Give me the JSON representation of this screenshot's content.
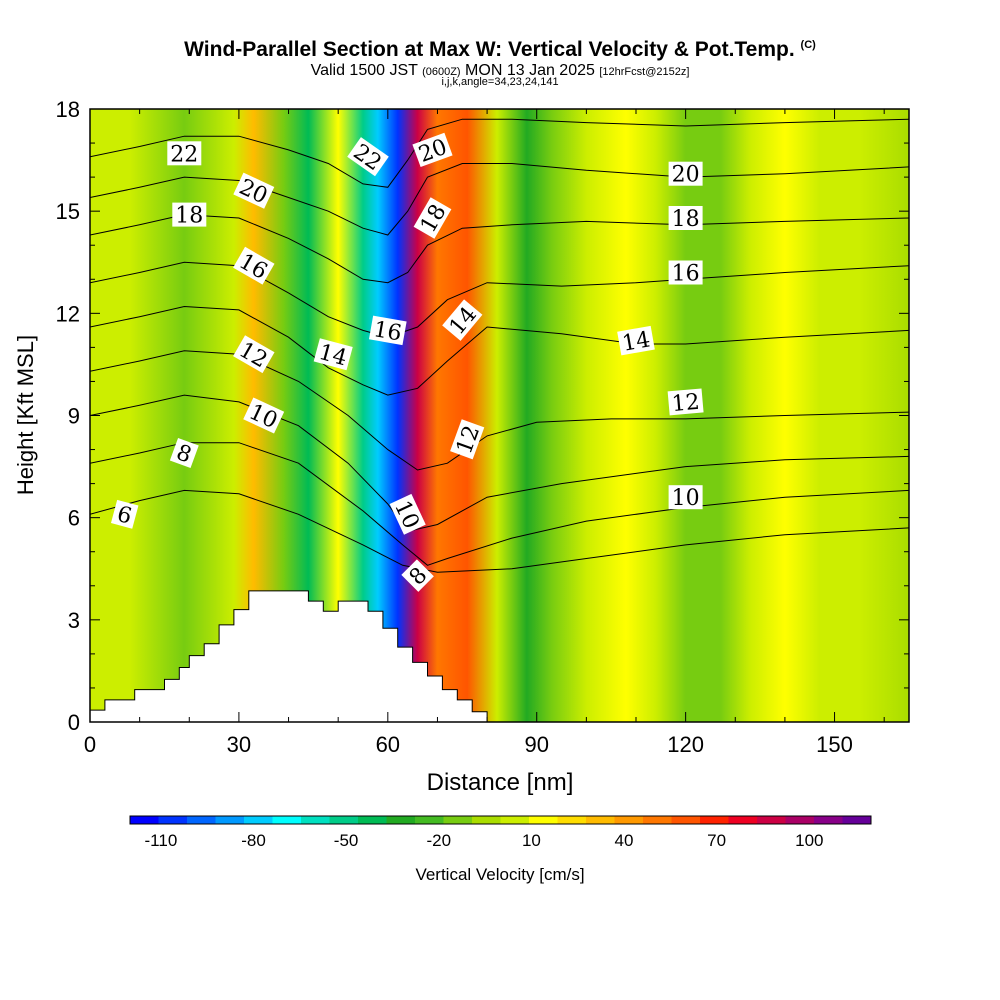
{
  "header": {
    "title": "Wind-Parallel Section at Max W: Vertical Velocity & Pot.Temp.",
    "copyright": "(C)",
    "valid_prefix": "Valid 1500 JST",
    "valid_utc": "(0600Z)",
    "valid_date": "MON 13 Jan 2025",
    "forecast": "[12hrFcst@2152z]",
    "params": "i,j,k,angle=34,23,24,141"
  },
  "chart_data": {
    "type": "heatmap",
    "title": "Wind-Parallel Section at Max W: Vertical Velocity & Pot.Temp.",
    "xlabel": "Distance [nm]",
    "ylabel": "Height [Kft MSL]",
    "xlim": [
      0,
      165
    ],
    "ylim": [
      0,
      18
    ],
    "x_ticks": [
      0,
      30,
      60,
      90,
      120,
      150
    ],
    "y_ticks": [
      0,
      3,
      6,
      9,
      12,
      15,
      18
    ],
    "colorbar": {
      "label": "Vertical Velocity [cm/s]",
      "tick_labels": [
        "-110",
        "-80",
        "-50",
        "-20",
        "10",
        "40",
        "70",
        "100"
      ],
      "tick_values": [
        -110,
        -80,
        -50,
        -20,
        10,
        40,
        70,
        100
      ],
      "range": [
        -120,
        120
      ],
      "colors": [
        "#0000ff",
        "#0033ff",
        "#0066ff",
        "#0099ff",
        "#00ccff",
        "#00ffff",
        "#00e0c0",
        "#00cc88",
        "#00bb55",
        "#22aa22",
        "#44bb22",
        "#77cc11",
        "#aadd00",
        "#ccee00",
        "#ffff00",
        "#ffdd00",
        "#ffbb00",
        "#ff9900",
        "#ff7700",
        "#ff5500",
        "#ff2200",
        "#ee0022",
        "#cc0044",
        "#aa0066",
        "#880088",
        "#660099"
      ]
    },
    "velocity_bands": [
      {
        "x": 0,
        "w": 0
      },
      {
        "x": 8,
        "w": 8
      },
      {
        "x": 19,
        "w": -12
      },
      {
        "x": 29,
        "w": 8
      },
      {
        "x": 33,
        "w": 28
      },
      {
        "x": 39,
        "w": -10
      },
      {
        "x": 44,
        "w": -40
      },
      {
        "x": 50,
        "w": 10
      },
      {
        "x": 55,
        "w": -55
      },
      {
        "x": 58,
        "w": -80
      },
      {
        "x": 62,
        "w": -108
      },
      {
        "x": 66,
        "w": 90
      },
      {
        "x": 70,
        "w": 48
      },
      {
        "x": 76,
        "w": 60
      },
      {
        "x": 82,
        "w": 6
      },
      {
        "x": 88,
        "w": -32
      },
      {
        "x": 93,
        "w": -10
      },
      {
        "x": 100,
        "w": 2
      },
      {
        "x": 108,
        "w": 14
      },
      {
        "x": 114,
        "w": 8
      },
      {
        "x": 120,
        "w": -18
      },
      {
        "x": 127,
        "w": -12
      },
      {
        "x": 133,
        "w": 4
      },
      {
        "x": 140,
        "w": 10
      },
      {
        "x": 147,
        "w": 6
      },
      {
        "x": 155,
        "w": 2
      },
      {
        "x": 165,
        "w": -4
      }
    ],
    "terrain": [
      [
        0,
        0.35
      ],
      [
        3,
        0.35
      ],
      [
        3,
        0.65
      ],
      [
        9,
        0.65
      ],
      [
        9,
        0.95
      ],
      [
        15,
        0.95
      ],
      [
        15,
        1.25
      ],
      [
        18,
        1.25
      ],
      [
        18,
        1.6
      ],
      [
        20,
        1.6
      ],
      [
        20,
        1.95
      ],
      [
        23,
        1.95
      ],
      [
        23,
        2.3
      ],
      [
        26,
        2.3
      ],
      [
        26,
        2.85
      ],
      [
        29,
        2.85
      ],
      [
        29,
        3.3
      ],
      [
        32,
        3.3
      ],
      [
        32,
        3.85
      ],
      [
        44,
        3.85
      ],
      [
        44,
        3.55
      ],
      [
        47,
        3.55
      ],
      [
        47,
        3.25
      ],
      [
        50,
        3.25
      ],
      [
        50,
        3.55
      ],
      [
        56,
        3.55
      ],
      [
        56,
        3.25
      ],
      [
        59,
        3.25
      ],
      [
        59,
        2.75
      ],
      [
        62,
        2.75
      ],
      [
        62,
        2.2
      ],
      [
        65,
        2.2
      ],
      [
        65,
        1.75
      ],
      [
        68,
        1.75
      ],
      [
        68,
        1.35
      ],
      [
        71,
        1.35
      ],
      [
        71,
        0.95
      ],
      [
        74,
        0.95
      ],
      [
        74,
        0.65
      ],
      [
        77,
        0.65
      ],
      [
        77,
        0.3
      ],
      [
        80,
        0.3
      ],
      [
        80,
        0
      ],
      [
        0,
        0
      ]
    ],
    "isentropes": [
      {
        "theta": 6,
        "label": "6",
        "points": [
          [
            0,
            6.1
          ],
          [
            10,
            6.5
          ],
          [
            19,
            6.8
          ],
          [
            30,
            6.7
          ],
          [
            42,
            6.1
          ],
          [
            55,
            5.2
          ],
          [
            63,
            4.6
          ],
          [
            70,
            4.4
          ],
          [
            85,
            4.5
          ],
          [
            100,
            4.8
          ],
          [
            120,
            5.2
          ],
          [
            140,
            5.5
          ],
          [
            165,
            5.7
          ]
        ],
        "label_at": [
          7,
          6.1
        ]
      },
      {
        "theta": 8,
        "label": "8",
        "points": [
          [
            0,
            7.6
          ],
          [
            10,
            7.9
          ],
          [
            19,
            8.2
          ],
          [
            30,
            8.2
          ],
          [
            42,
            7.6
          ],
          [
            55,
            6.2
          ],
          [
            63,
            5.2
          ],
          [
            68,
            4.6
          ],
          [
            72,
            4.8
          ],
          [
            85,
            5.4
          ],
          [
            100,
            5.9
          ],
          [
            120,
            6.3
          ],
          [
            140,
            6.6
          ],
          [
            165,
            6.8
          ]
        ],
        "label_at": [
          19,
          7.9
        ]
      },
      {
        "theta": 10,
        "label": "10",
        "points": [
          [
            0,
            9.0
          ],
          [
            10,
            9.3
          ],
          [
            19,
            9.6
          ],
          [
            30,
            9.4
          ],
          [
            42,
            8.7
          ],
          [
            52,
            7.6
          ],
          [
            60,
            6.4
          ],
          [
            64,
            5.6
          ],
          [
            70,
            5.8
          ],
          [
            80,
            6.6
          ],
          [
            95,
            7.0
          ],
          [
            110,
            7.3
          ],
          [
            120,
            7.5
          ],
          [
            140,
            7.7
          ],
          [
            165,
            7.8
          ]
        ],
        "label_at": [
          35,
          9.0
        ]
      },
      {
        "theta": 12,
        "label": "12",
        "points": [
          [
            0,
            10.3
          ],
          [
            10,
            10.6
          ],
          [
            19,
            10.9
          ],
          [
            30,
            10.8
          ],
          [
            42,
            10.0
          ],
          [
            52,
            9.0
          ],
          [
            60,
            8.0
          ],
          [
            66,
            7.4
          ],
          [
            72,
            7.6
          ],
          [
            80,
            8.4
          ],
          [
            90,
            8.8
          ],
          [
            105,
            8.9
          ],
          [
            120,
            8.9
          ],
          [
            140,
            9.0
          ],
          [
            165,
            9.1
          ]
        ],
        "label_at": [
          33,
          10.8
        ]
      },
      {
        "theta": 14,
        "label": "14",
        "points": [
          [
            0,
            11.6
          ],
          [
            10,
            11.9
          ],
          [
            19,
            12.2
          ],
          [
            30,
            12.1
          ],
          [
            40,
            11.3
          ],
          [
            48,
            10.4
          ],
          [
            55,
            9.9
          ],
          [
            60,
            9.6
          ],
          [
            66,
            9.8
          ],
          [
            72,
            10.6
          ],
          [
            80,
            11.6
          ],
          [
            95,
            11.4
          ],
          [
            110,
            11.1
          ],
          [
            120,
            11.1
          ],
          [
            140,
            11.3
          ],
          [
            165,
            11.5
          ]
        ],
        "label_at": [
          49,
          10.8
        ]
      },
      {
        "theta": 16,
        "label": "16",
        "points": [
          [
            0,
            12.9
          ],
          [
            10,
            13.2
          ],
          [
            19,
            13.5
          ],
          [
            30,
            13.4
          ],
          [
            40,
            12.6
          ],
          [
            48,
            11.9
          ],
          [
            55,
            11.5
          ],
          [
            60,
            11.3
          ],
          [
            66,
            11.6
          ],
          [
            72,
            12.4
          ],
          [
            80,
            12.9
          ],
          [
            95,
            12.8
          ],
          [
            110,
            12.9
          ],
          [
            120,
            13.0
          ],
          [
            140,
            13.2
          ],
          [
            165,
            13.4
          ]
        ],
        "label_at": [
          33,
          13.4
        ]
      },
      {
        "theta": 18,
        "label": "18",
        "points": [
          [
            0,
            14.3
          ],
          [
            10,
            14.6
          ],
          [
            19,
            14.9
          ],
          [
            30,
            14.8
          ],
          [
            40,
            14.2
          ],
          [
            48,
            13.6
          ],
          [
            55,
            13.0
          ],
          [
            60,
            12.9
          ],
          [
            64,
            13.2
          ],
          [
            68,
            14.0
          ],
          [
            75,
            14.5
          ],
          [
            85,
            14.6
          ],
          [
            100,
            14.7
          ],
          [
            120,
            14.6
          ],
          [
            140,
            14.7
          ],
          [
            165,
            14.8
          ]
        ],
        "label_at": [
          20,
          14.9
        ]
      },
      {
        "theta": 20,
        "label": "20",
        "points": [
          [
            0,
            15.4
          ],
          [
            10,
            15.7
          ],
          [
            19,
            16.0
          ],
          [
            30,
            15.9
          ],
          [
            40,
            15.4
          ],
          [
            48,
            15.0
          ],
          [
            55,
            14.5
          ],
          [
            60,
            14.3
          ],
          [
            64,
            15.0
          ],
          [
            68,
            16.0
          ],
          [
            75,
            16.4
          ],
          [
            85,
            16.4
          ],
          [
            100,
            16.2
          ],
          [
            120,
            16.0
          ],
          [
            140,
            16.1
          ],
          [
            165,
            16.3
          ]
        ],
        "label_at": [
          33,
          15.6
        ]
      },
      {
        "theta": 22,
        "label": "22",
        "points": [
          [
            0,
            16.6
          ],
          [
            10,
            16.9
          ],
          [
            19,
            17.2
          ],
          [
            30,
            17.2
          ],
          [
            40,
            16.8
          ],
          [
            48,
            16.4
          ],
          [
            55,
            15.8
          ],
          [
            60,
            15.7
          ],
          [
            64,
            16.5
          ],
          [
            68,
            17.4
          ],
          [
            75,
            17.7
          ],
          [
            85,
            17.7
          ],
          [
            100,
            17.6
          ],
          [
            120,
            17.5
          ],
          [
            140,
            17.6
          ],
          [
            165,
            17.7
          ]
        ],
        "label_at": [
          19,
          16.7
        ]
      }
    ],
    "contour_labels": [
      {
        "text": "22",
        "x": 19,
        "y": 16.7,
        "angle": 0
      },
      {
        "text": "20",
        "x": 33,
        "y": 15.6,
        "angle": 25
      },
      {
        "text": "18",
        "x": 20,
        "y": 14.9,
        "angle": 0
      },
      {
        "text": "16",
        "x": 33,
        "y": 13.4,
        "angle": 30
      },
      {
        "text": "12",
        "x": 33,
        "y": 10.8,
        "angle": 30
      },
      {
        "text": "10",
        "x": 35,
        "y": 9.0,
        "angle": 25
      },
      {
        "text": "8",
        "x": 19,
        "y": 7.9,
        "angle": 20
      },
      {
        "text": "6",
        "x": 7,
        "y": 6.1,
        "angle": 15
      },
      {
        "text": "14",
        "x": 49,
        "y": 10.8,
        "angle": 15
      },
      {
        "text": "16",
        "x": 60,
        "y": 11.5,
        "angle": 10
      },
      {
        "text": "22",
        "x": 56,
        "y": 16.6,
        "angle": 35
      },
      {
        "text": "20",
        "x": 69,
        "y": 16.8,
        "angle": -20
      },
      {
        "text": "18",
        "x": 69,
        "y": 14.8,
        "angle": -60
      },
      {
        "text": "14",
        "x": 75,
        "y": 11.8,
        "angle": -50
      },
      {
        "text": "12",
        "x": 76,
        "y": 8.3,
        "angle": -70
      },
      {
        "text": "10",
        "x": 64,
        "y": 6.1,
        "angle": 65
      },
      {
        "text": "8",
        "x": 66,
        "y": 4.3,
        "angle": -45
      },
      {
        "text": "20",
        "x": 120,
        "y": 16.1,
        "angle": 0
      },
      {
        "text": "18",
        "x": 120,
        "y": 14.8,
        "angle": 0
      },
      {
        "text": "16",
        "x": 120,
        "y": 13.2,
        "angle": 0
      },
      {
        "text": "14",
        "x": 110,
        "y": 11.2,
        "angle": -10
      },
      {
        "text": "12",
        "x": 120,
        "y": 9.4,
        "angle": -5
      },
      {
        "text": "10",
        "x": 120,
        "y": 6.6,
        "angle": 0
      }
    ]
  }
}
